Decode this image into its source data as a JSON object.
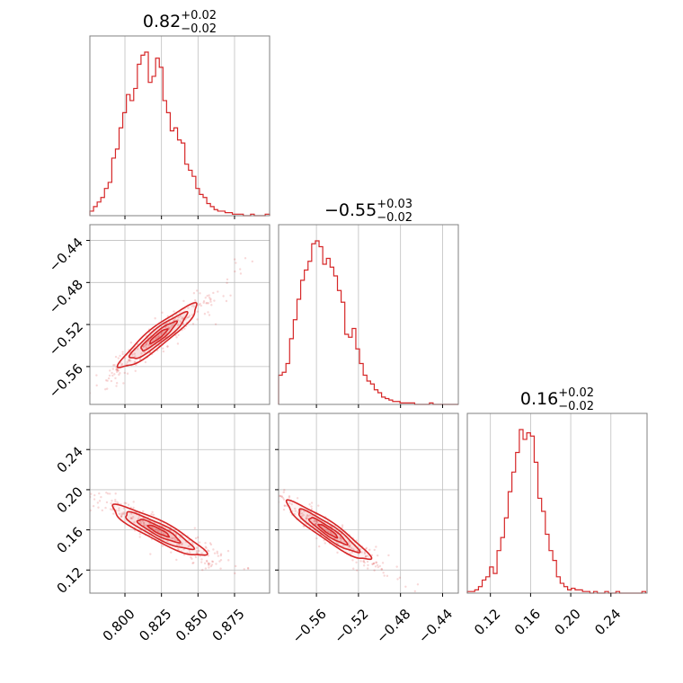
{
  "chart_data": {
    "type": "corner",
    "color": "#d62728",
    "parameters": [
      {
        "range": [
          0.776,
          0.899
        ],
        "ticks": [
          0.8,
          0.825,
          0.85,
          0.875
        ],
        "tick_labels": [
          "0.800",
          "0.825",
          "0.850",
          "0.875"
        ],
        "title": {
          "median": "0.82",
          "plus": "+0.02",
          "minus": "−0.02"
        },
        "hist_bin_edges": [
          0.776,
          0.7785,
          0.781,
          0.7835,
          0.786,
          0.7885,
          0.791,
          0.7935,
          0.796,
          0.7985,
          0.801,
          0.8035,
          0.806,
          0.8085,
          0.811,
          0.8135,
          0.816,
          0.8185,
          0.821,
          0.8235,
          0.826,
          0.8285,
          0.831,
          0.8335,
          0.836,
          0.8385,
          0.841,
          0.8435,
          0.846,
          0.8485,
          0.851,
          0.8535,
          0.856,
          0.8585,
          0.861,
          0.8635,
          0.866,
          0.8685,
          0.871,
          0.8735,
          0.876,
          0.8785,
          0.881,
          0.8835,
          0.886,
          0.8885,
          0.891,
          0.8935,
          0.896,
          0.899
        ],
        "hist_counts": [
          3,
          6,
          9,
          12,
          18,
          22,
          38,
          44,
          58,
          68,
          80,
          76,
          84,
          100,
          106,
          108,
          88,
          92,
          104,
          98,
          76,
          68,
          56,
          58,
          50,
          48,
          34,
          30,
          26,
          18,
          14,
          12,
          8,
          6,
          4,
          3,
          3,
          2,
          2,
          1,
          1,
          1,
          0,
          0,
          1,
          0,
          0,
          0,
          1
        ]
      },
      {
        "range": [
          -0.596,
          -0.425
        ],
        "ticks": [
          -0.56,
          -0.52,
          -0.48,
          -0.44
        ],
        "tick_labels": [
          "−0.56",
          "−0.52",
          "−0.48",
          "−0.44"
        ],
        "title": {
          "median": "−0.55",
          "plus": "+0.03",
          "minus": "−0.02"
        },
        "hist_bin_edges": [
          -0.596,
          -0.5925,
          -0.589,
          -0.5855,
          -0.582,
          -0.5785,
          -0.575,
          -0.5715,
          -0.568,
          -0.5645,
          -0.561,
          -0.5575,
          -0.554,
          -0.5505,
          -0.547,
          -0.5435,
          -0.54,
          -0.5365,
          -0.533,
          -0.5295,
          -0.526,
          -0.5225,
          -0.519,
          -0.5155,
          -0.512,
          -0.5085,
          -0.505,
          -0.5015,
          -0.498,
          -0.4945,
          -0.491,
          -0.4875,
          -0.484,
          -0.4805,
          -0.477,
          -0.4735,
          -0.47,
          -0.4665,
          -0.463,
          -0.4595,
          -0.456,
          -0.4525,
          -0.449,
          -0.4455,
          -0.442,
          -0.4385,
          -0.435,
          -0.4315,
          -0.428,
          -0.425
        ],
        "hist_counts": [
          20,
          22,
          28,
          45,
          58,
          72,
          85,
          92,
          98,
          110,
          112,
          108,
          96,
          100,
          94,
          88,
          78,
          70,
          48,
          46,
          52,
          38,
          28,
          20,
          16,
          14,
          10,
          8,
          5,
          4,
          3,
          2,
          2,
          1,
          1,
          1,
          1,
          0,
          0,
          0,
          0,
          1,
          0,
          0,
          0,
          0,
          0,
          0,
          0
        ]
      },
      {
        "range": [
          0.097,
          0.276
        ],
        "ticks": [
          0.12,
          0.16,
          0.2,
          0.24
        ],
        "tick_labels": [
          "0.12",
          "0.16",
          "0.20",
          "0.24"
        ],
        "title": {
          "median": "0.16",
          "plus": "+0.02",
          "minus": "−0.02"
        },
        "hist_bin_edges": [
          0.097,
          0.1007,
          0.1044,
          0.1081,
          0.1118,
          0.1155,
          0.1192,
          0.1229,
          0.1266,
          0.1303,
          0.134,
          0.1377,
          0.1414,
          0.1451,
          0.1488,
          0.1525,
          0.1562,
          0.1599,
          0.1636,
          0.1673,
          0.171,
          0.1747,
          0.1784,
          0.1821,
          0.1858,
          0.1895,
          0.1932,
          0.1969,
          0.2006,
          0.2043,
          0.208,
          0.2117,
          0.2154,
          0.2191,
          0.2228,
          0.2265,
          0.2302,
          0.2339,
          0.2376,
          0.2413,
          0.245,
          0.2487,
          0.2524,
          0.2561,
          0.2598,
          0.2635,
          0.2672,
          0.2709,
          0.2746
        ],
        "hist_counts": [
          1,
          1,
          2,
          4,
          8,
          10,
          16,
          12,
          26,
          34,
          46,
          62,
          74,
          86,
          100,
          94,
          98,
          96,
          80,
          58,
          50,
          36,
          26,
          20,
          10,
          6,
          4,
          2,
          3,
          2,
          2,
          1,
          1,
          0,
          1,
          0,
          0,
          1,
          0,
          0,
          1,
          0,
          0,
          0,
          0,
          0,
          0,
          1
        ]
      }
    ],
    "correlations": {
      "p0_p1": {
        "slope": 1.14,
        "intercept": -1.47,
        "sigma_along": 0.018,
        "sigma_perp": 0.0035,
        "center": [
          0.823,
          -0.531
        ]
      },
      "p0_p2": {
        "slope": -0.77,
        "intercept": 0.793,
        "sigma_along": 0.018,
        "sigma_perp": 0.004,
        "center": [
          0.823,
          0.159
        ]
      },
      "p1_p2": {
        "slope": -0.72,
        "intercept": -0.236,
        "sigma_along": 0.022,
        "sigma_perp": 0.004,
        "center": [
          -0.549,
          0.159
        ]
      }
    }
  }
}
